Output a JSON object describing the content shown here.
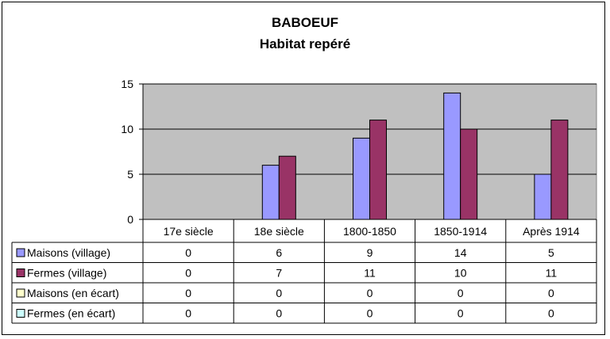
{
  "chart_data": {
    "type": "bar",
    "title": "BABOEUF",
    "subtitle": "Habitat repéré",
    "categories": [
      "17e siècle",
      "18e siècle",
      "1800-1850",
      "1850-1914",
      "Après 1914"
    ],
    "series": [
      {
        "name": "Maisons (village)",
        "values": [
          0,
          6,
          9,
          14,
          5
        ],
        "color": "#9999ff"
      },
      {
        "name": "Fermes (village)",
        "values": [
          0,
          7,
          11,
          10,
          11
        ],
        "color": "#993366"
      },
      {
        "name": "Maisons (en écart)",
        "values": [
          0,
          0,
          0,
          0,
          0
        ],
        "color": "#ffffcc"
      },
      {
        "name": "Fermes (en écart)",
        "values": [
          0,
          0,
          0,
          0,
          0
        ],
        "color": "#ccffff"
      }
    ],
    "yticks": [
      0,
      5,
      10,
      15
    ],
    "ylim": [
      0,
      15
    ],
    "grid": true,
    "plot_background": "#c0c0c0",
    "legend": "data-table"
  }
}
